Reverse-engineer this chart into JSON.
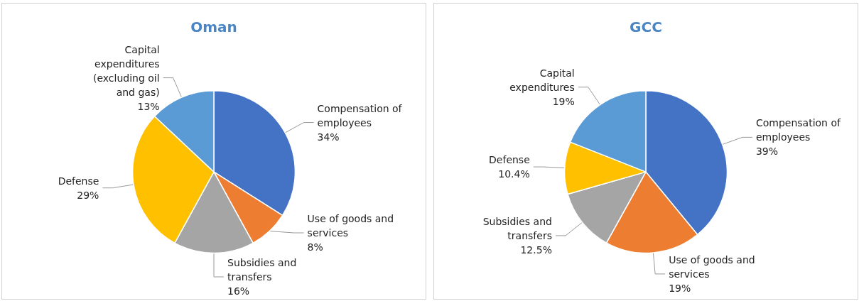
{
  "chart_data": [
    {
      "type": "pie",
      "title": "Oman",
      "categories": [
        "Compensation of employees",
        "Use of goods and services",
        "Subsidies and transfers",
        "Defense",
        "Capital expenditures (excluding oil and gas)"
      ],
      "values": [
        34,
        8,
        16,
        29,
        13
      ],
      "colors": [
        "#4472c4",
        "#ed7d31",
        "#a5a5a5",
        "#ffc000",
        "#5b9bd5"
      ],
      "value_labels": [
        "34%",
        "8%",
        "16%",
        "29%",
        "13%"
      ]
    },
    {
      "type": "pie",
      "title": "GCC",
      "categories": [
        "Compensation of employees",
        "Use of goods and services",
        "Subsidies and transfers",
        "Defense",
        "Capital expenditures"
      ],
      "values": [
        39,
        19,
        12.5,
        10.4,
        19
      ],
      "colors": [
        "#4472c4",
        "#ed7d31",
        "#a5a5a5",
        "#ffc000",
        "#5b9bd5"
      ],
      "value_labels": [
        "39%",
        "19%",
        "12.5%",
        "10.4%",
        "19%"
      ]
    }
  ]
}
